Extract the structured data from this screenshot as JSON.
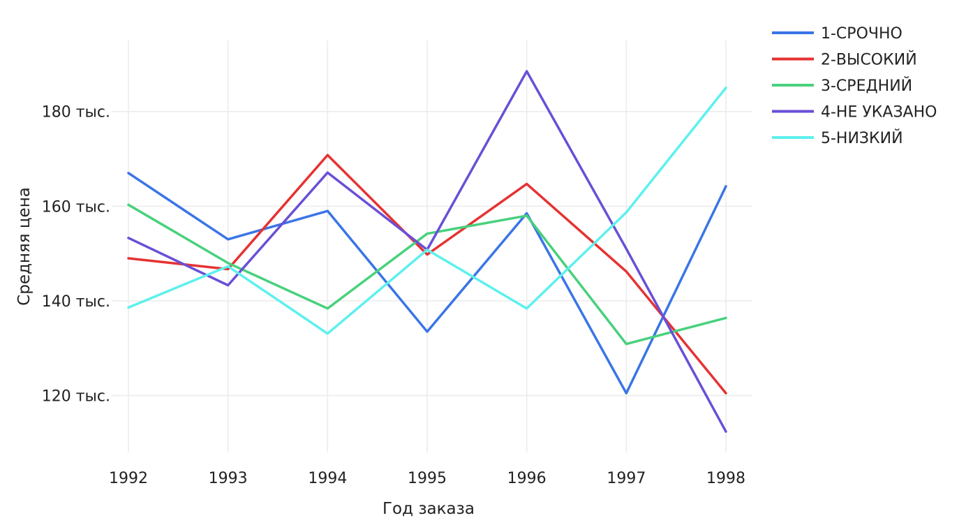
{
  "chart_data": {
    "type": "line",
    "title": "",
    "xlabel": "Год заказа",
    "ylabel": "Средняя цена",
    "x": [
      "1992",
      "1993",
      "1994",
      "1995",
      "1996",
      "1997",
      "1998"
    ],
    "ylim": [
      108000,
      195000
    ],
    "yticks": [
      120000,
      140000,
      160000,
      180000
    ],
    "ytick_labels": [
      "120 тыс.",
      "140 тыс.",
      "160 тыс.",
      "180 тыс."
    ],
    "grid": true,
    "legend_position": "top-right",
    "series": [
      {
        "name": "1-СРОЧНО",
        "color": "#3a75e6",
        "values": [
          167000,
          153000,
          159000,
          133500,
          158500,
          120500,
          164200
        ]
      },
      {
        "name": "2-ВЫСОКИЙ",
        "color": "#e63232",
        "values": [
          149000,
          146700,
          170800,
          149800,
          164700,
          146200,
          120500
        ]
      },
      {
        "name": "3-СРЕДНИЙ",
        "color": "#48d17d",
        "values": [
          160300,
          148000,
          138400,
          154200,
          158000,
          130900,
          136400
        ]
      },
      {
        "name": "4-НЕ УКАЗАНО",
        "color": "#6a4fd6",
        "values": [
          153300,
          143300,
          167100,
          150800,
          188500,
          151000,
          112400
        ]
      },
      {
        "name": "5-НИЗКИЙ",
        "color": "#5df0ee",
        "values": [
          138600,
          147300,
          133100,
          150800,
          138400,
          158700,
          185000
        ]
      }
    ]
  }
}
